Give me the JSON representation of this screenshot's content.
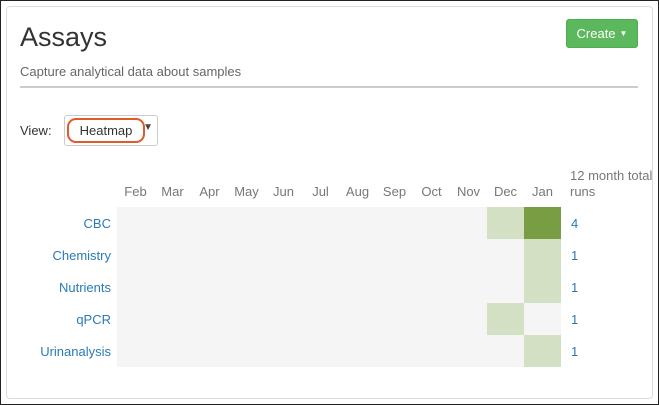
{
  "header": {
    "title": "Assays",
    "subtitle": "Capture analytical data about samples",
    "create_label": "Create"
  },
  "view": {
    "label": "View:",
    "selected": "Heatmap"
  },
  "colors": {
    "empty": "#f5f5f5",
    "low": "#d3e0c4",
    "high": "#789d43",
    "accent": "#5cb85c",
    "highlight": "#e05a2b"
  },
  "chart_data": {
    "type": "heatmap",
    "columns": [
      "Feb",
      "Mar",
      "Apr",
      "May",
      "Jun",
      "Jul",
      "Aug",
      "Sep",
      "Oct",
      "Nov",
      "Dec",
      "Jan"
    ],
    "total_header": "12 month total runs",
    "rows": [
      {
        "name": "CBC",
        "values": [
          0,
          0,
          0,
          0,
          0,
          0,
          0,
          0,
          0,
          0,
          1,
          3
        ],
        "total": "4"
      },
      {
        "name": "Chemistry",
        "values": [
          0,
          0,
          0,
          0,
          0,
          0,
          0,
          0,
          0,
          0,
          0,
          1
        ],
        "total": "1"
      },
      {
        "name": "Nutrients",
        "values": [
          0,
          0,
          0,
          0,
          0,
          0,
          0,
          0,
          0,
          0,
          0,
          1
        ],
        "total": "1"
      },
      {
        "name": "qPCR",
        "values": [
          0,
          0,
          0,
          0,
          0,
          0,
          0,
          0,
          0,
          0,
          1,
          0
        ],
        "total": "1"
      },
      {
        "name": "Urinanalysis",
        "values": [
          0,
          0,
          0,
          0,
          0,
          0,
          0,
          0,
          0,
          0,
          0,
          1
        ],
        "total": "1"
      }
    ]
  }
}
